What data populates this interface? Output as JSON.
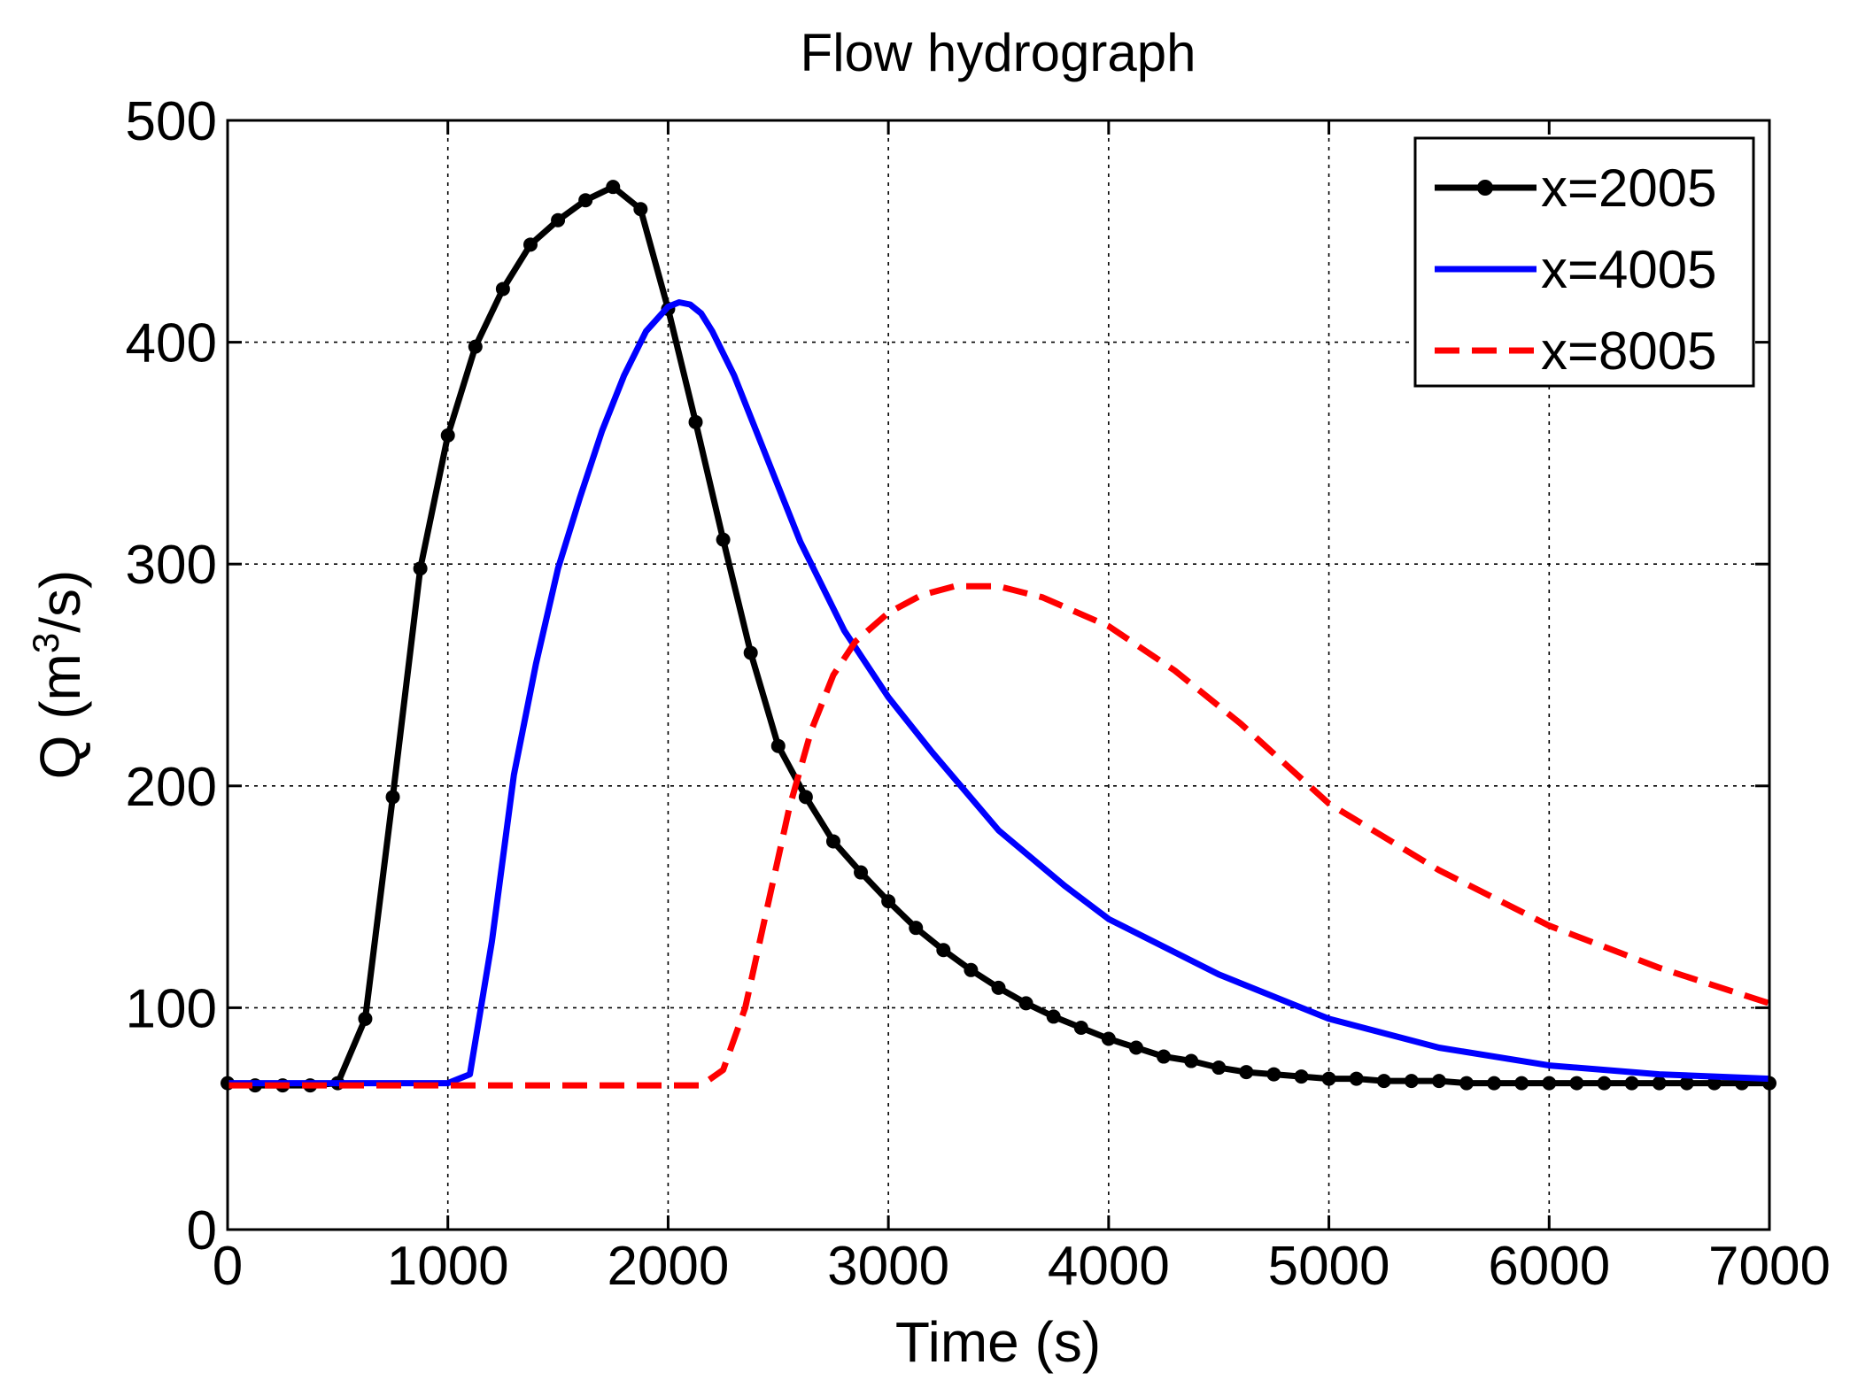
{
  "chart_data": {
    "type": "line",
    "title": "Flow hydrograph",
    "xlabel": "Time (s)",
    "ylabel_base": "Q (m",
    "ylabel_sup": "3",
    "ylabel_end": "/s)",
    "xlim": [
      0,
      7000
    ],
    "ylim": [
      0,
      500
    ],
    "xticks": [
      0,
      1000,
      2000,
      3000,
      4000,
      5000,
      6000,
      7000
    ],
    "yticks": [
      0,
      100,
      200,
      300,
      400,
      500
    ],
    "grid": true,
    "legend_position": "top-right",
    "series": [
      {
        "name": "x=2005",
        "color": "#000000",
        "style": "solid-dots",
        "x": [
          0,
          125,
          250,
          375,
          500,
          625,
          750,
          875,
          1000,
          1125,
          1250,
          1375,
          1500,
          1625,
          1750,
          1875,
          2000,
          2125,
          2250,
          2375,
          2500,
          2625,
          2750,
          2875,
          3000,
          3125,
          3250,
          3375,
          3500,
          3625,
          3750,
          3875,
          4000,
          4125,
          4250,
          4375,
          4500,
          4625,
          4750,
          4875,
          5000,
          5125,
          5250,
          5375,
          5500,
          5625,
          5750,
          5875,
          6000,
          6125,
          6250,
          6375,
          6500,
          6625,
          6750,
          6875,
          7000
        ],
        "y": [
          66,
          65,
          65,
          65,
          66,
          95,
          195,
          298,
          358,
          398,
          424,
          444,
          455,
          464,
          470,
          460,
          415,
          364,
          311,
          260,
          218,
          195,
          175,
          161,
          148,
          136,
          126,
          117,
          109,
          102,
          96,
          91,
          86,
          82,
          78,
          76,
          73,
          71,
          70,
          69,
          68,
          68,
          67,
          67,
          67,
          66,
          66,
          66,
          66,
          66,
          66,
          66,
          66,
          66,
          66,
          66,
          66
        ]
      },
      {
        "name": "x=4005",
        "color": "#0000ff",
        "style": "solid",
        "x": [
          0,
          1000,
          1100,
          1200,
          1300,
          1400,
          1500,
          1600,
          1700,
          1800,
          1900,
          2000,
          2050,
          2100,
          2150,
          2200,
          2300,
          2400,
          2500,
          2600,
          2800,
          3000,
          3200,
          3500,
          3800,
          4000,
          4500,
          5000,
          5500,
          6000,
          6500,
          7000
        ],
        "y": [
          66,
          66,
          70,
          130,
          205,
          255,
          298,
          330,
          360,
          385,
          405,
          416,
          418,
          417,
          413,
          405,
          385,
          360,
          335,
          310,
          270,
          240,
          215,
          180,
          155,
          140,
          115,
          95,
          82,
          74,
          70,
          68
        ]
      },
      {
        "name": "x=8005",
        "color": "#ff0000",
        "style": "dashed",
        "x": [
          0,
          2150,
          2250,
          2350,
          2450,
          2550,
          2650,
          2750,
          2850,
          3000,
          3150,
          3300,
          3500,
          3700,
          4000,
          4300,
          4600,
          5000,
          5500,
          6000,
          6500,
          7000
        ],
        "y": [
          65,
          65,
          72,
          100,
          145,
          190,
          225,
          250,
          265,
          278,
          286,
          290,
          290,
          285,
          272,
          252,
          228,
          192,
          162,
          137,
          118,
          102
        ]
      }
    ]
  }
}
